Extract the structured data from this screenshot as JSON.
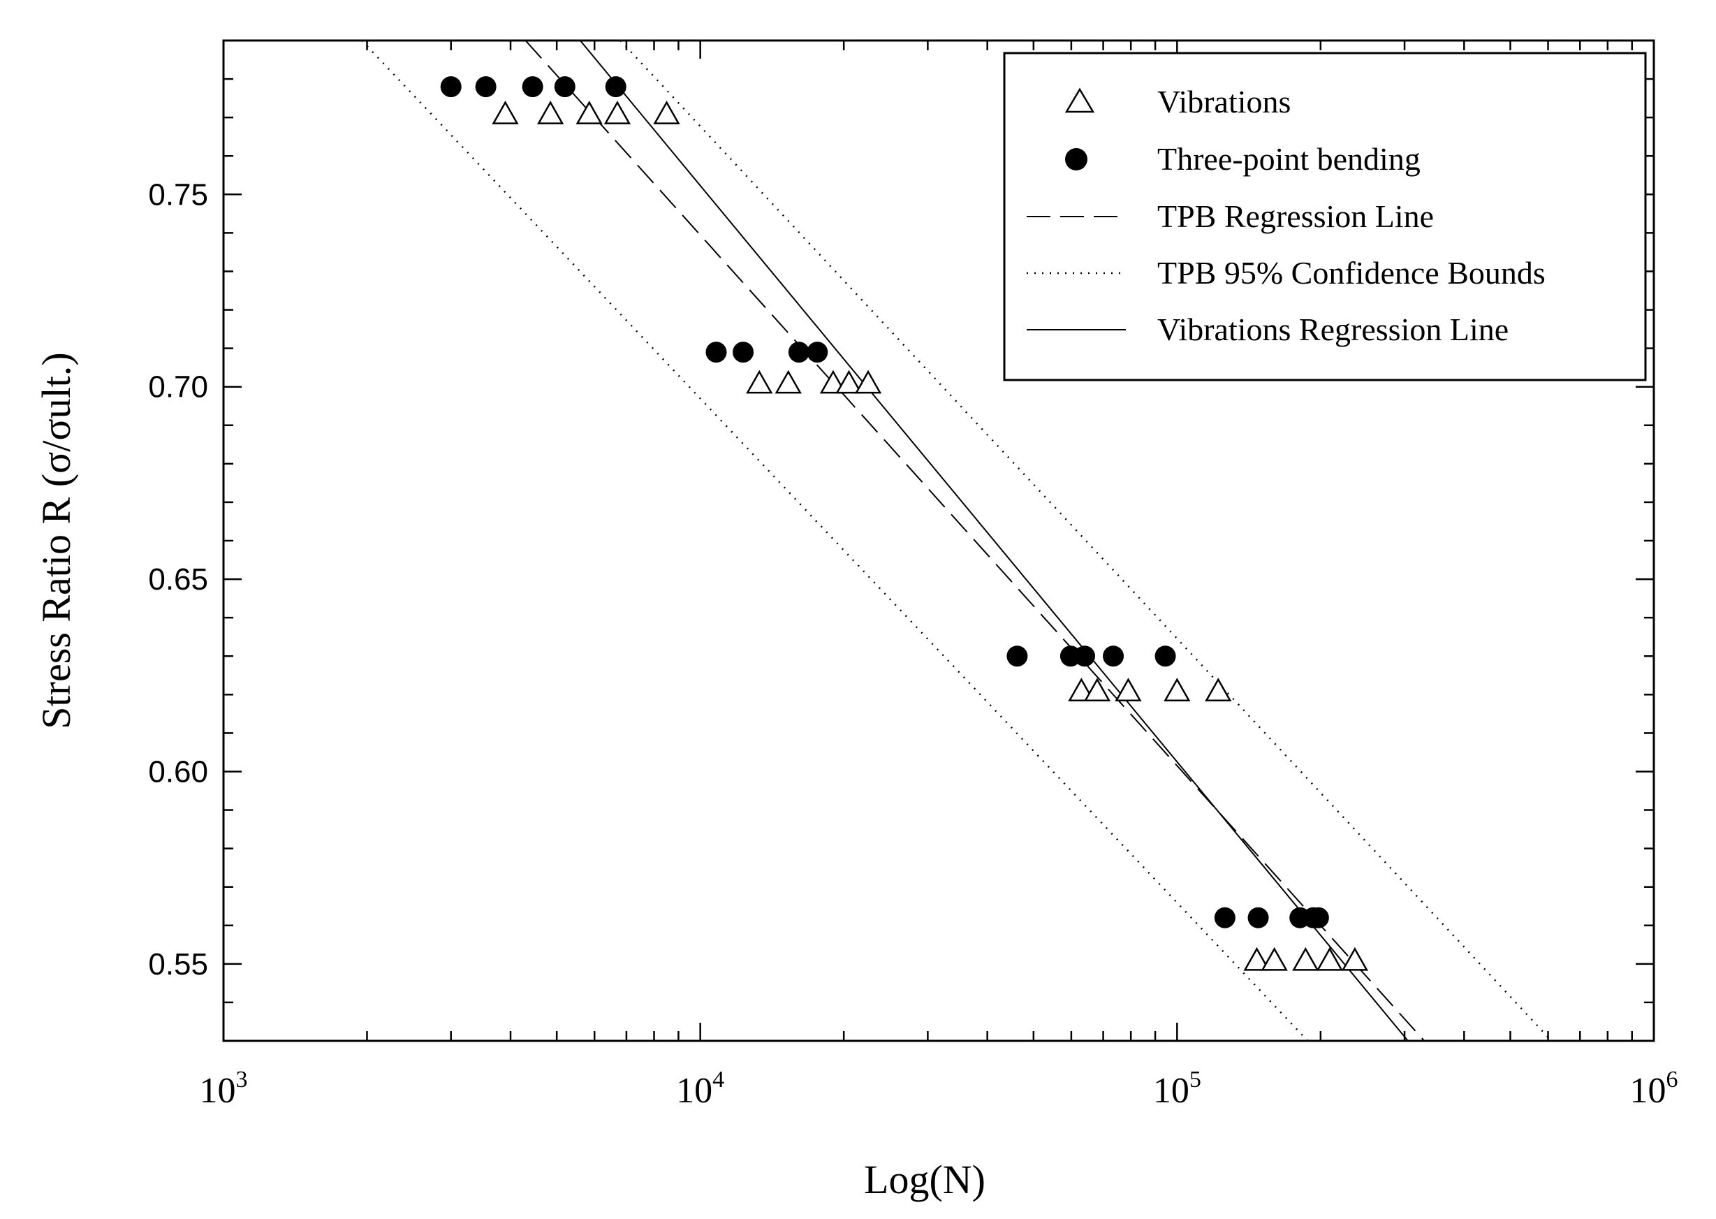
{
  "chart_data": {
    "type": "scatter",
    "title": "",
    "xlabel": "Log(N)",
    "ylabel": "Stress Ratio R (σ/σult.)",
    "xscale": "log",
    "xlim": [
      1000,
      1000000
    ],
    "ylim": [
      0.53,
      0.79
    ],
    "yticks": [
      "0.55",
      "0.60",
      "0.65",
      "0.70",
      "0.75"
    ],
    "xticks": [
      {
        "base": "10",
        "exp": "3",
        "value": 1000
      },
      {
        "base": "10",
        "exp": "4",
        "value": 10000
      },
      {
        "base": "10",
        "exp": "5",
        "value": 100000
      },
      {
        "base": "10",
        "exp": "6",
        "value": 1000000
      }
    ],
    "legend_position": "top-right",
    "series": [
      {
        "name": "Vibrations",
        "marker": "triangle-open",
        "points": [
          [
            3900,
            0.771
          ],
          [
            4850,
            0.771
          ],
          [
            5850,
            0.771
          ],
          [
            6700,
            0.771
          ],
          [
            8500,
            0.771
          ],
          [
            13300,
            0.701
          ],
          [
            15300,
            0.701
          ],
          [
            19000,
            0.701
          ],
          [
            20500,
            0.701
          ],
          [
            22500,
            0.701
          ],
          [
            63000,
            0.621
          ],
          [
            68000,
            0.621
          ],
          [
            79000,
            0.621
          ],
          [
            100000,
            0.621
          ],
          [
            122000,
            0.621
          ],
          [
            147000,
            0.551
          ],
          [
            160000,
            0.551
          ],
          [
            186000,
            0.551
          ],
          [
            209000,
            0.551
          ],
          [
            236000,
            0.551
          ]
        ]
      },
      {
        "name": "Three-point bending",
        "marker": "circle-filled",
        "points": [
          [
            3000,
            0.778
          ],
          [
            3550,
            0.778
          ],
          [
            4450,
            0.778
          ],
          [
            5200,
            0.778
          ],
          [
            6650,
            0.778
          ],
          [
            10800,
            0.709
          ],
          [
            12300,
            0.709
          ],
          [
            16100,
            0.709
          ],
          [
            17600,
            0.709
          ],
          [
            46200,
            0.63
          ],
          [
            59800,
            0.63
          ],
          [
            64000,
            0.63
          ],
          [
            73500,
            0.63
          ],
          [
            94500,
            0.63
          ],
          [
            126000,
            0.562
          ],
          [
            148000,
            0.562
          ],
          [
            181000,
            0.562
          ],
          [
            193000,
            0.562
          ],
          [
            198000,
            0.562
          ]
        ]
      },
      {
        "name": "TPB Regression Line",
        "style": "dashed",
        "endpoints": [
          [
            4300,
            0.79
          ],
          [
            330000,
            0.53
          ]
        ]
      },
      {
        "name": "TPB 95% Confidence Bounds",
        "style": "dotted",
        "bounds": [
          [
            [
              1950,
              0.79
            ],
            [
              188000,
              0.53
            ]
          ],
          [
            [
              6800,
              0.79
            ],
            [
              610000,
              0.53
            ]
          ]
        ]
      },
      {
        "name": "Vibrations Regression Line",
        "style": "solid",
        "endpoints": [
          [
            5600,
            0.79
          ],
          [
            305000,
            0.53
          ]
        ]
      }
    ]
  }
}
